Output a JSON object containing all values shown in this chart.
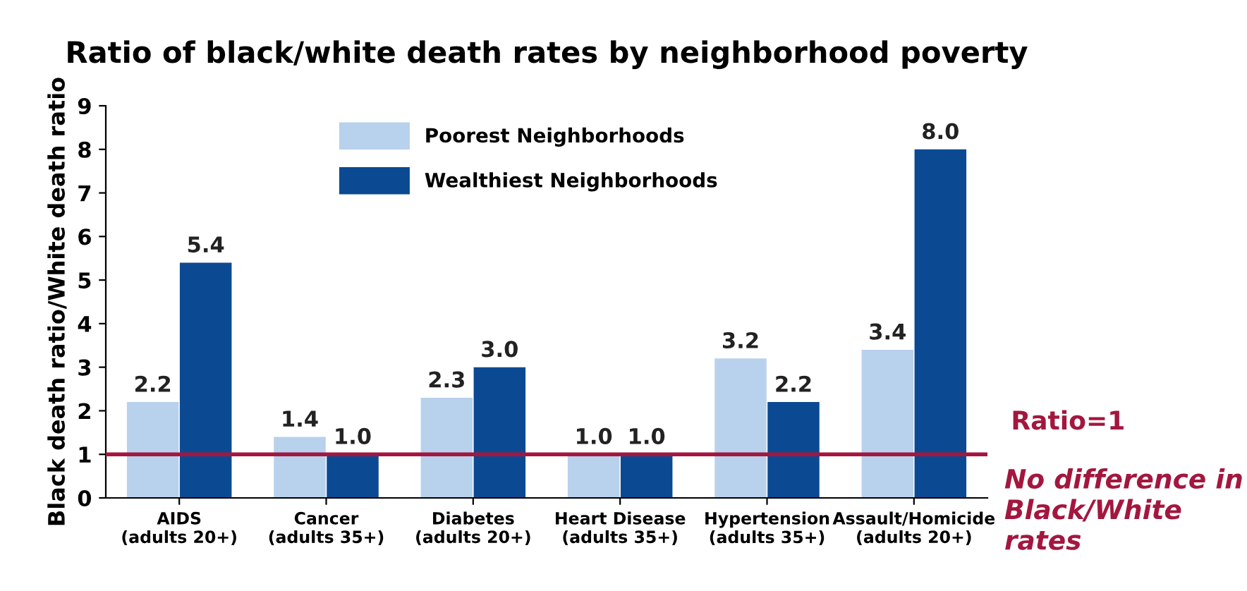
{
  "chart_data": {
    "type": "bar",
    "title": "Ratio of black/white death rates by neighborhood poverty",
    "ylabel": "Black death ratio/White death ratio",
    "categories": [
      "AIDS\n(adults 20+)",
      "Cancer\n(adults 35+)",
      "Diabetes\n(adults 20+)",
      "Heart Disease\n(adults 35+)",
      "Hypertension\n(adults 35+)",
      "Assault/Homicide\n(adults 20+)"
    ],
    "series": [
      {
        "name": "Poorest Neighborhoods",
        "color": "#b8d1ec",
        "values": [
          2.2,
          1.4,
          2.3,
          1.0,
          3.2,
          3.4
        ],
        "value_labels": [
          "2.2",
          "1.4",
          "2.3",
          "1.0",
          "3.2",
          "3.4"
        ]
      },
      {
        "name": "Wealthiest Neighborhoods",
        "color": "#0b4a93",
        "values": [
          5.4,
          1.0,
          3.0,
          1.0,
          2.2,
          8.0
        ],
        "value_labels": [
          "5.4",
          "1.0",
          "3.0",
          "1.0",
          "2.2",
          "8.0"
        ]
      }
    ],
    "ylim": [
      0,
      9
    ],
    "yticks": [
      0,
      1,
      2,
      3,
      4,
      5,
      6,
      7,
      8,
      9
    ],
    "legend": "top",
    "grid": false,
    "ref_lines": [
      {
        "axis": "y",
        "value": 1,
        "label": "Ratio=1",
        "color": "#a3173f"
      }
    ],
    "annotations": [
      "No difference in\nBlack/White\nrates"
    ]
  }
}
